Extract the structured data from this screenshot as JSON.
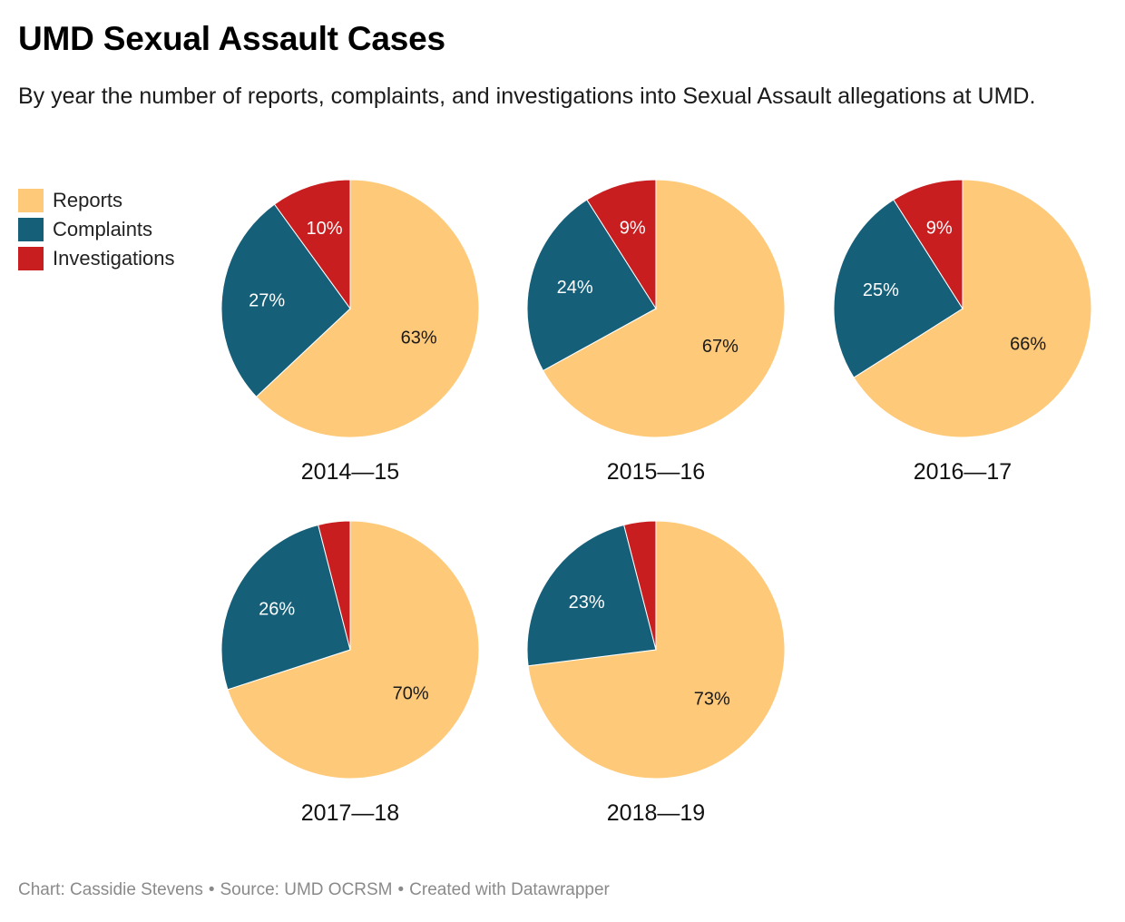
{
  "title": "UMD Sexual Assault Cases",
  "subtitle": "By year the number of reports, complaints, and investigations into Sexual Assault allegations at UMD.",
  "legend": [
    {
      "label": "Reports",
      "color": "#fec979"
    },
    {
      "label": "Complaints",
      "color": "#155f79"
    },
    {
      "label": "Investigations",
      "color": "#c81e20"
    }
  ],
  "chart_data": {
    "type": "pie",
    "categories": [
      "Reports",
      "Complaints",
      "Investigations"
    ],
    "colors": [
      "#fec979",
      "#155f79",
      "#c81e20"
    ],
    "legend_position": "top-left",
    "pies": [
      {
        "label": "2014—15",
        "values": [
          63,
          27,
          10
        ],
        "value_labels": [
          "63%",
          "27%",
          "10%"
        ]
      },
      {
        "label": "2015—16",
        "values": [
          67,
          24,
          9
        ],
        "value_labels": [
          "67%",
          "24%",
          "9%"
        ]
      },
      {
        "label": "2016—17",
        "values": [
          66,
          25,
          9
        ],
        "value_labels": [
          "66%",
          "25%",
          "9%"
        ]
      },
      {
        "label": "2017—18",
        "values": [
          70,
          26,
          4
        ],
        "value_labels": [
          "70%",
          "26%",
          ""
        ]
      },
      {
        "label": "2018—19",
        "values": [
          73,
          23,
          4
        ],
        "value_labels": [
          "73%",
          "23%",
          ""
        ]
      }
    ]
  },
  "footer": {
    "credit": "Chart: Cassidie Stevens",
    "source": "Source: UMD OCRSM",
    "tool": "Created with Datawrapper",
    "separator": "•"
  }
}
